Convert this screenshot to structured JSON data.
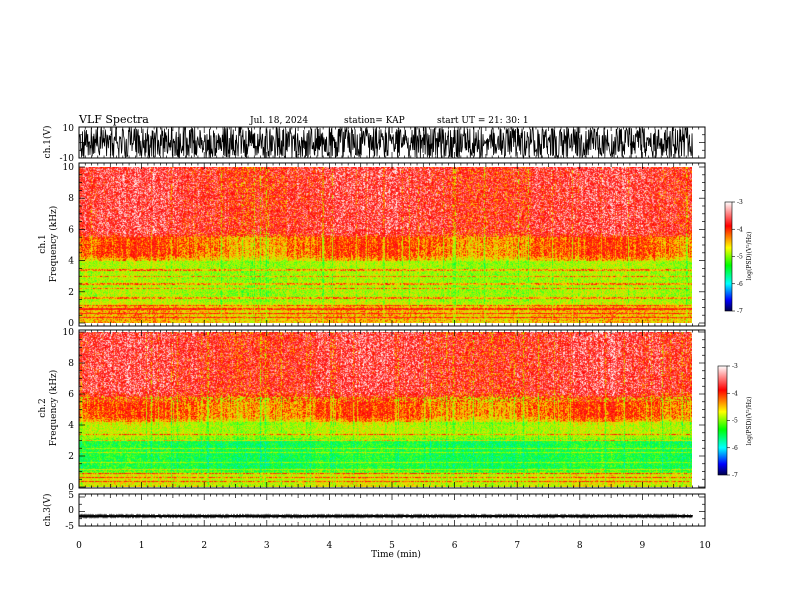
{
  "header": {
    "title": "VLF Spectra",
    "date": "Jul. 18, 2024",
    "station": "station= KAP",
    "start": "start UT = 21: 30: 1"
  },
  "chart_data": [
    {
      "type": "line",
      "panel": "ch1-waveform",
      "ylabel": "ch.1(V)",
      "ylim": [
        -10,
        10
      ],
      "yticks": [
        "10",
        "-10"
      ],
      "xlim": [
        0,
        10
      ],
      "description_values": {
        "typical_min": -10,
        "typical_max": 10
      }
    },
    {
      "type": "heatmap",
      "panel": "ch1-spectrogram",
      "ylabel": "ch.1\nFrequency (kHz)",
      "ylabel_lines": [
        "ch.1",
        "Frequency (kHz)"
      ],
      "ylim": [
        0,
        10
      ],
      "yticks": [
        "0",
        "2",
        "4",
        "6",
        "8",
        "10"
      ],
      "xlim": [
        0,
        9.8
      ],
      "colorbar": {
        "ticks": [
          "-3",
          "-4",
          "-5",
          "-6",
          "-7"
        ],
        "range": [
          -7,
          -3
        ],
        "label": "log(PSD)(V²/Hz)"
      },
      "bands": [
        {
          "from": 0,
          "to": 1.1,
          "level": -4.4
        },
        {
          "from": 1.1,
          "to": 4.0,
          "level": -4.75
        },
        {
          "from": 4.0,
          "to": 5.5,
          "level": -4.2
        },
        {
          "from": 5.5,
          "to": 10,
          "level": -3.7
        }
      ]
    },
    {
      "type": "heatmap",
      "panel": "ch2-spectrogram",
      "ylabel": "ch.2\nFrequency (kHz)",
      "ylabel_lines": [
        "ch.2",
        "Frequency (kHz)"
      ],
      "ylim": [
        0,
        10
      ],
      "yticks": [
        "0",
        "2",
        "4",
        "6",
        "8",
        "10"
      ],
      "xlim": [
        0,
        9.8
      ],
      "colorbar": {
        "ticks": [
          "-3",
          "-4",
          "-5",
          "-6",
          "-7"
        ],
        "range": [
          -7,
          -3
        ],
        "label": "log(PSD)(V²/Hz)"
      },
      "bands": [
        {
          "from": 0,
          "to": 0.9,
          "level": -4.6
        },
        {
          "from": 0.9,
          "to": 3.0,
          "level": -5.2
        },
        {
          "from": 3.0,
          "to": 4.2,
          "level": -4.7
        },
        {
          "from": 4.2,
          "to": 5.8,
          "level": -4.2
        },
        {
          "from": 5.8,
          "to": 10,
          "level": -3.7
        }
      ]
    },
    {
      "type": "line",
      "panel": "ch3-waveform",
      "ylabel": "ch.3(V)",
      "ylim": [
        -5,
        5
      ],
      "yticks": [
        "5",
        "0",
        "-5"
      ],
      "xlim": [
        0,
        10
      ],
      "description_values": {
        "level": -1.6,
        "ripple": 0.4
      }
    }
  ],
  "xaxis": {
    "label": "Time (min)",
    "ticks": [
      "0",
      "1",
      "2",
      "3",
      "4",
      "5",
      "6",
      "7",
      "8",
      "9",
      "10"
    ]
  },
  "colors": {
    "axis": "#000000",
    "background": "#ffffff"
  }
}
